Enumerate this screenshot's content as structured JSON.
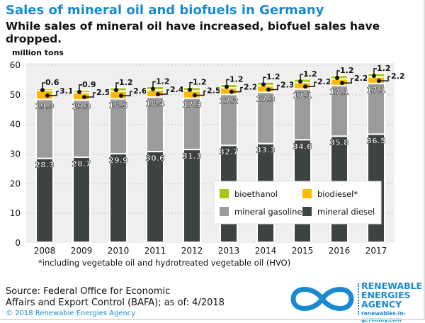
{
  "chart_data": {
    "type": "bar",
    "stacked": true,
    "title": "Sales of mineral oil and biofuels in Germany",
    "subtitle": "While sales of mineral oil have increased, biofuel sales have dropped.",
    "ylabel": "million tons",
    "ylim": [
      0,
      60
    ],
    "yticks": [
      "0",
      "10",
      "20",
      "30",
      "40",
      "50",
      "60"
    ],
    "categories": [
      "2008",
      "2009",
      "2010",
      "2011",
      "2012",
      "2013",
      "2014",
      "2015",
      "2016",
      "2017"
    ],
    "series": [
      {
        "name": "mineral diesel",
        "color": "#3d4440",
        "values": [
          28.3,
          28.7,
          29.9,
          30.6,
          31.3,
          32.7,
          33.3,
          34.6,
          35.8,
          36.5
        ]
      },
      {
        "name": "mineral gasoline",
        "color": "#9b9b9b",
        "values": [
          19.9,
          19.3,
          18.5,
          18.4,
          17.3,
          17.2,
          17.3,
          17.1,
          17.1,
          17.1
        ]
      },
      {
        "name": "biodiesel*",
        "color": "#fbb900",
        "values": [
          3.1,
          2.5,
          2.6,
          2.4,
          2.5,
          2.2,
          2.3,
          2.2,
          2.2,
          2.2
        ]
      },
      {
        "name": "bioethanol",
        "color": "#a8c80f",
        "values": [
          0.6,
          0.9,
          1.2,
          1.2,
          1.2,
          1.2,
          1.2,
          1.2,
          1.2,
          1.2
        ]
      }
    ],
    "legend_order": [
      "bioethanol",
      "biodiesel*",
      "mineral gasoline",
      "mineral diesel"
    ],
    "legend_placement": "bottom-right inside",
    "grid": true
  },
  "footnote": "*including vegetable oil and hydrotreated vegetable oil (HVO)",
  "source_line1": "Source: Federal Office for Economic",
  "source_line2": "Affairs and Export Control (BAFA); as of: 4/2018",
  "copyright": "© 2018 Renewable Energies Agency",
  "logo": {
    "line1": "RENEWABLE",
    "line2": "ENERGIES",
    "line3": "AGENCY",
    "url": "renewables-in-germany.com"
  }
}
